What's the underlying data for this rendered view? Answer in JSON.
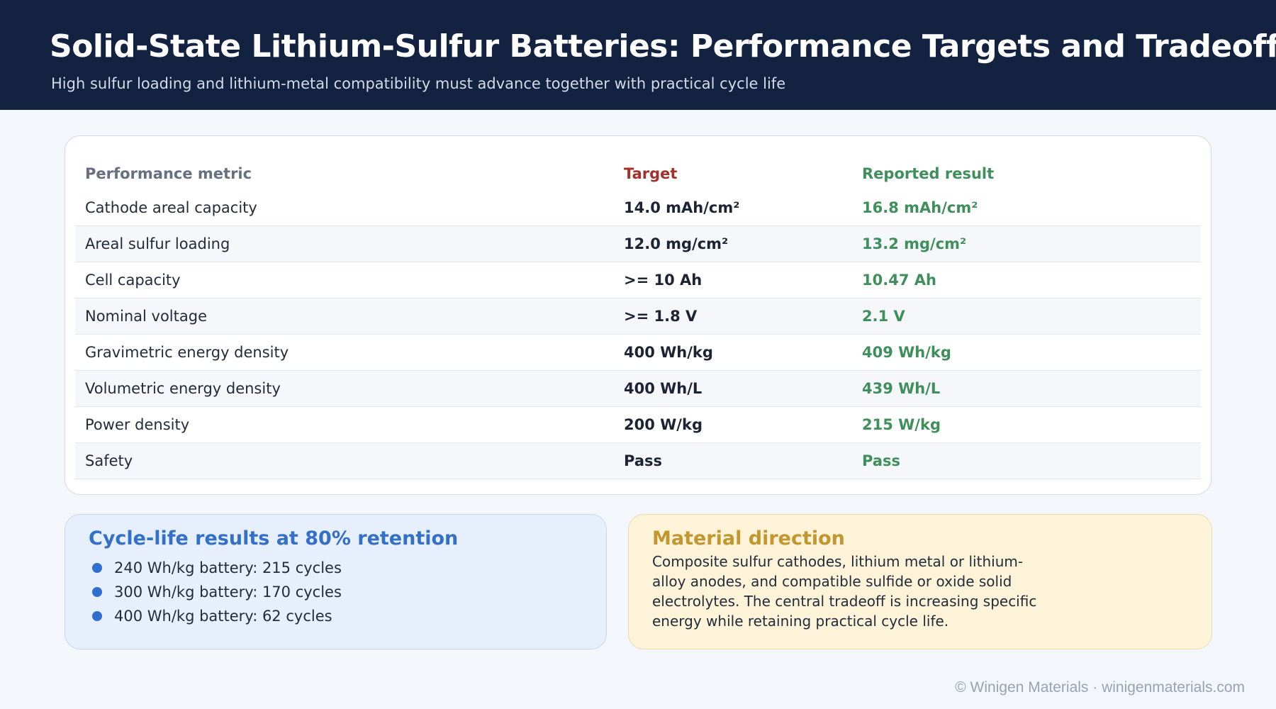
{
  "header": {
    "title": "Solid-State Lithium-Sulfur Batteries: Performance Targets and Tradeoffs",
    "subtitle": "High sulfur loading and lithium-metal compatibility must advance together with practical cycle life"
  },
  "table": {
    "columns": [
      "Performance metric",
      "Target",
      "Reported result"
    ],
    "rows": [
      {
        "metric": "Cathode areal capacity",
        "target": "14.0 mAh/cm²",
        "result": "16.8 mAh/cm²"
      },
      {
        "metric": "Areal sulfur loading",
        "target": "12.0 mg/cm²",
        "result": "13.2 mg/cm²"
      },
      {
        "metric": "Cell capacity",
        "target": ">= 10 Ah",
        "result": "10.47 Ah"
      },
      {
        "metric": "Nominal voltage",
        "target": ">= 1.8 V",
        "result": "2.1 V"
      },
      {
        "metric": "Gravimetric energy density",
        "target": "400 Wh/kg",
        "result": "409 Wh/kg"
      },
      {
        "metric": "Volumetric energy density",
        "target": "400 Wh/L",
        "result": "439 Wh/L"
      },
      {
        "metric": "Power density",
        "target": "200 W/kg",
        "result": "215 W/kg"
      },
      {
        "metric": "Safety",
        "target": "Pass",
        "result": "Pass"
      }
    ]
  },
  "cycle_life": {
    "title": "Cycle-life results at 80% retention",
    "items": [
      "240 Wh/kg battery: 215 cycles",
      "300 Wh/kg battery: 170 cycles",
      "400 Wh/kg battery: 62 cycles"
    ]
  },
  "material": {
    "title": "Material direction",
    "text": "Composite sulfur cathodes, lithium metal or lithium-alloy anodes, and compatible sulfide or oxide solid electrolytes. The central tradeoff is increasing specific energy while retaining practical cycle life."
  },
  "footer": {
    "text": "© Winigen Materials · winigenmaterials.com"
  },
  "colors": {
    "header_bg": "#132240",
    "target_header": "#a4302a",
    "result": "#3f8f5c",
    "cycle_accent": "#3371c8",
    "material_accent": "#c3962f"
  }
}
